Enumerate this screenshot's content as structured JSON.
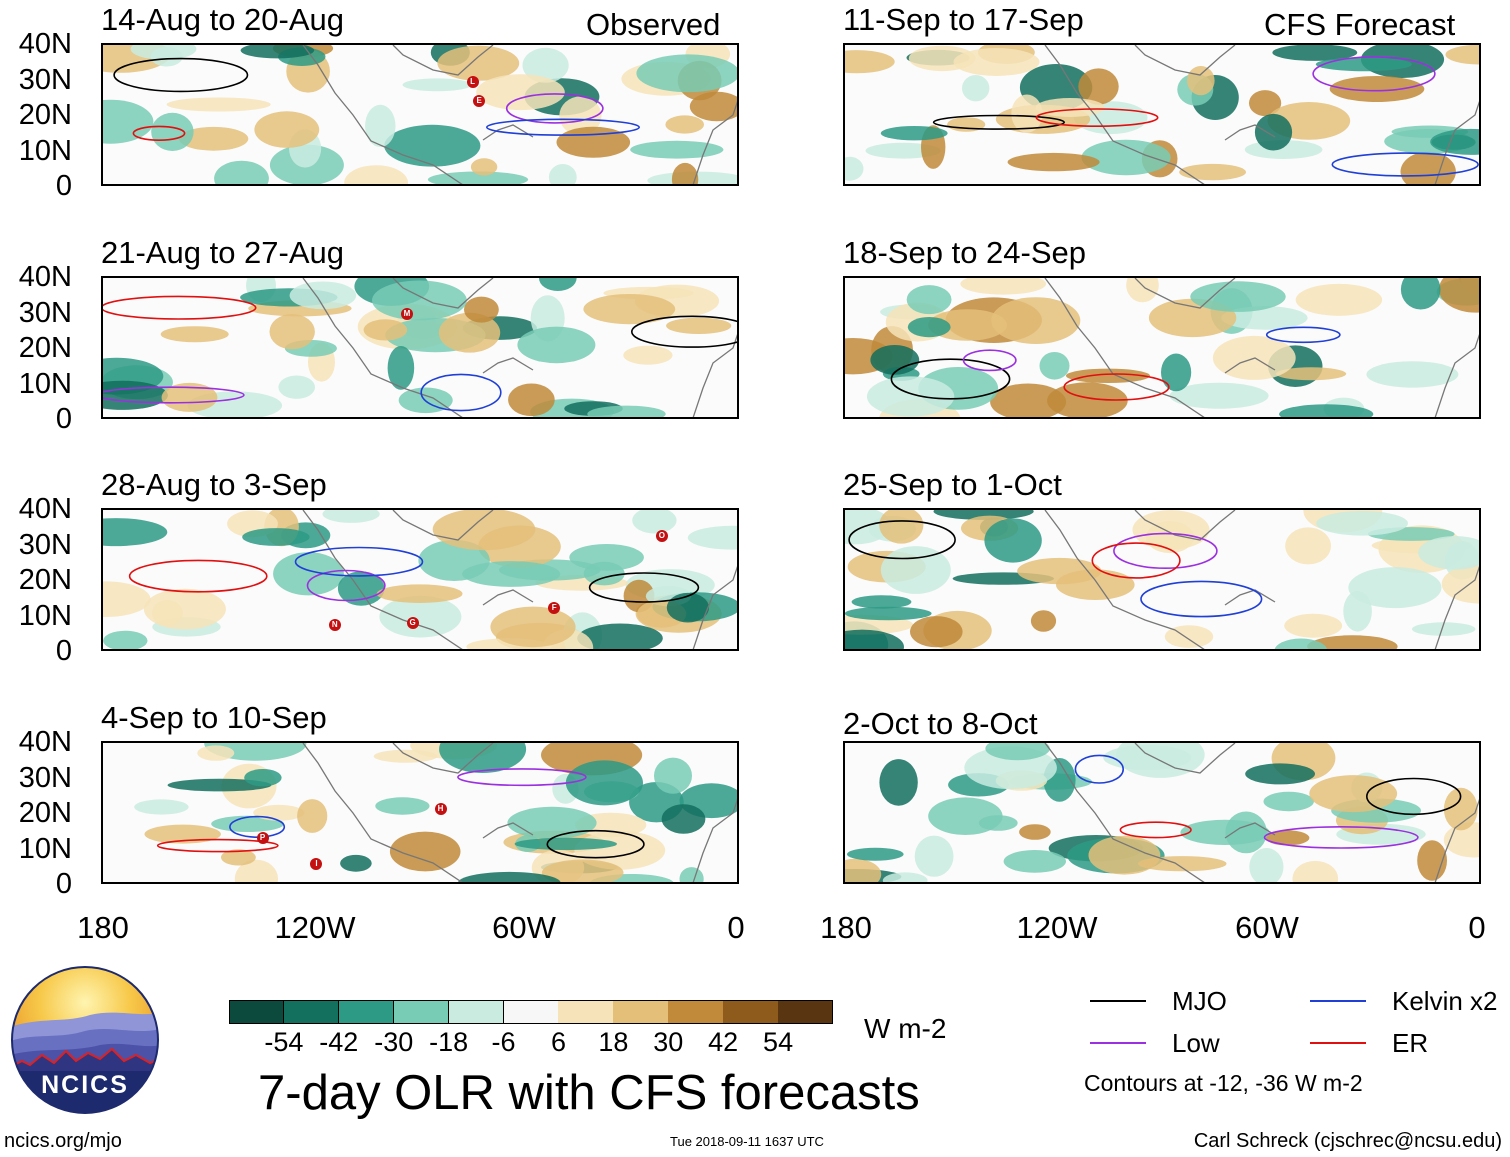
{
  "chart_data": {
    "type": "heatmap",
    "title": "7-day OLR with CFS forecasts",
    "units": "W m-2",
    "y_ticks": [
      "40N",
      "30N",
      "20N",
      "10N",
      "0"
    ],
    "x_ticks": [
      "180",
      "120W",
      "60W",
      "0"
    ],
    "x_range_deg": [
      -180,
      0
    ],
    "y_range_deg": [
      0,
      40
    ],
    "observed_label": "Observed",
    "forecast_label": "CFS Forecast",
    "panels_observed": [
      {
        "title": "14-Aug to 20-Aug",
        "storms": [
          "E",
          "L"
        ]
      },
      {
        "title": "21-Aug to 27-Aug",
        "storms": [
          "M"
        ]
      },
      {
        "title": "28-Aug to 3-Sep",
        "storms": [
          "N",
          "O",
          "G",
          "F"
        ]
      },
      {
        "title": "4-Sep to 10-Sep",
        "storms": [
          "P",
          "I",
          "H"
        ]
      }
    ],
    "panels_forecast": [
      {
        "title": "11-Sep to 17-Sep"
      },
      {
        "title": "18-Sep to 24-Sep"
      },
      {
        "title": "25-Sep to 1-Oct"
      },
      {
        "title": "2-Oct to 8-Oct"
      }
    ],
    "colorbar": {
      "labels": [
        "-54",
        "-42",
        "-30",
        "-18",
        "-6",
        "6",
        "18",
        "30",
        "42",
        "54"
      ],
      "colors": [
        "#0b4a3c",
        "#136f5e",
        "#2d9a85",
        "#78cbb5",
        "#c9ebe0",
        "#f7f7f7",
        "#f6e3b9",
        "#e4bf7a",
        "#c08a3a",
        "#8e5b1c",
        "#5a3512"
      ]
    },
    "legend": [
      {
        "label": "MJO",
        "color": "#000000"
      },
      {
        "label": "Kelvin x2",
        "color": "#1f3fd6"
      },
      {
        "label": "Low",
        "color": "#9b30e0"
      },
      {
        "label": "ER",
        "color": "#e01010"
      }
    ],
    "contour_note": "Contours at -12, -36 W m-2"
  },
  "footer": {
    "logo_text": "NCICS",
    "site": "ncics.org/mjo",
    "timestamp": "Tue 2018-09-11 1637 UTC",
    "author": "Carl Schreck (cjschrec@ncsu.edu)"
  }
}
